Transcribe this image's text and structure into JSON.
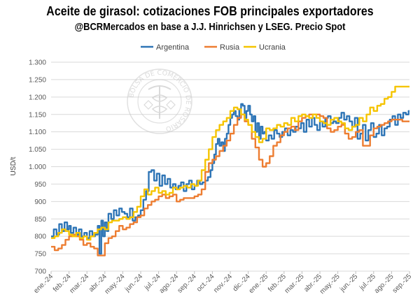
{
  "chart_data": {
    "type": "line",
    "title": "Aceite de girasol: cotizaciones FOB principales exportadores",
    "subtitle": "@BCRMercados en base a J.J. Hinrichsen y LSEG. Precio Spot",
    "ylabel": "USD/t",
    "xlabel": "",
    "ylim": [
      700,
      1300
    ],
    "yticks": [
      "700",
      "750",
      "800",
      "850",
      "900",
      "950",
      "1.000",
      "1.050",
      "1.100",
      "1.150",
      "1.200",
      "1.250",
      "1.300"
    ],
    "x_labels": [
      "ene.-24",
      "feb.-24",
      "mar.-24",
      "abr.-24",
      "may.-24",
      "jun.-24",
      "jul.-24",
      "ago.-24",
      "sep.-24",
      "oct.-24",
      "nov.-24",
      "dic.-24",
      "ene.-25",
      "feb.-25",
      "mar.-25",
      "abr.-25",
      "may.-25",
      "jun.-25",
      "jul.-25",
      "ago.-25",
      "sep.-25"
    ],
    "x_unit": "month",
    "grid": true,
    "legend_position": "top-center",
    "series": [
      {
        "name": "Argentina",
        "color": "#2E75B6",
        "x": [
          0,
          0.15,
          0.3,
          0.45,
          0.6,
          0.75,
          0.9,
          1.0,
          1.1,
          1.25,
          1.4,
          1.55,
          1.7,
          1.85,
          2.0,
          2.15,
          2.3,
          2.45,
          2.6,
          2.7,
          2.8,
          2.9,
          3.0,
          3.1,
          3.2,
          3.35,
          3.5,
          3.65,
          3.8,
          3.95,
          4.1,
          4.25,
          4.4,
          4.55,
          4.7,
          4.85,
          5.0,
          5.15,
          5.3,
          5.45,
          5.6,
          5.75,
          5.9,
          6.05,
          6.2,
          6.35,
          6.5,
          6.65,
          6.8,
          6.95,
          7.1,
          7.25,
          7.4,
          7.55,
          7.7,
          7.85,
          8.0,
          8.15,
          8.3,
          8.45,
          8.6,
          8.75,
          8.9,
          9.0,
          9.1,
          9.2,
          9.3,
          9.4,
          9.5,
          9.6,
          9.7,
          9.8,
          9.9,
          10.0,
          10.1,
          10.2,
          10.3,
          10.4,
          10.5,
          10.6,
          10.7,
          10.8,
          10.9,
          11.0,
          11.1,
          11.2,
          11.3,
          11.4,
          11.5,
          11.6,
          11.7,
          11.8,
          11.9,
          12.0,
          12.15,
          12.3,
          12.45,
          12.6,
          12.75,
          12.9,
          13.05,
          13.2,
          13.35,
          13.5,
          13.65,
          13.8,
          13.95,
          14.1,
          14.25,
          14.4,
          14.55,
          14.7,
          14.85,
          15.0,
          15.15,
          15.3,
          15.45,
          15.6,
          15.75,
          15.9,
          16.05,
          16.2,
          16.35,
          16.5,
          16.65,
          16.8,
          16.95,
          17.1,
          17.25,
          17.4,
          17.55,
          17.7,
          17.85,
          18.0,
          18.15,
          18.3,
          18.45,
          18.6,
          18.75,
          18.9,
          19.05,
          19.2,
          19.35,
          19.5,
          19.65,
          19.8,
          19.95,
          20.0
        ],
        "values": [
          800,
          820,
          805,
          835,
          815,
          840,
          820,
          830,
          810,
          825,
          805,
          820,
          800,
          810,
          795,
          815,
          800,
          805,
          830,
          750,
          845,
          800,
          840,
          815,
          865,
          850,
          875,
          860,
          880,
          870,
          865,
          855,
          880,
          845,
          855,
          860,
          875,
          905,
          930,
          985,
          990,
          960,
          980,
          945,
          975,
          950,
          965,
          940,
          950,
          935,
          945,
          955,
          930,
          950,
          960,
          935,
          945,
          960,
          950,
          955,
          960,
          970,
          990,
          1010,
          1035,
          1065,
          1080,
          1060,
          1070,
          1045,
          1080,
          1095,
          1120,
          1140,
          1150,
          1160,
          1145,
          1135,
          1165,
          1180,
          1175,
          1140,
          1160,
          1175,
          1150,
          1130,
          1145,
          1100,
          1125,
          1080,
          1115,
          1095,
          1100,
          1075,
          1090,
          1080,
          1105,
          1095,
          1085,
          1100,
          1110,
          1090,
          1105,
          1100,
          1115,
          1110,
          1125,
          1100,
          1135,
          1115,
          1140,
          1120,
          1105,
          1130,
          1115,
          1140,
          1145,
          1125,
          1130,
          1125,
          1140,
          1155,
          1135,
          1145,
          1130,
          1115,
          1140,
          1080,
          1095,
          1120,
          1075,
          1105,
          1125,
          1085,
          1095,
          1120,
          1090,
          1110,
          1115,
          1135,
          1145,
          1120,
          1150,
          1140,
          1155,
          1150,
          1160,
          1160
        ]
      },
      {
        "name": "Rusia",
        "color": "#ED7D31",
        "x": [
          0,
          0.2,
          0.4,
          0.6,
          0.8,
          1.0,
          1.2,
          1.4,
          1.6,
          1.8,
          2.0,
          2.2,
          2.4,
          2.6,
          2.8,
          3.0,
          3.2,
          3.4,
          3.6,
          3.8,
          4.0,
          4.2,
          4.4,
          4.6,
          4.8,
          5.0,
          5.2,
          5.4,
          5.6,
          5.8,
          6.0,
          6.2,
          6.4,
          6.6,
          6.8,
          7.0,
          7.2,
          7.4,
          7.6,
          7.8,
          8.0,
          8.2,
          8.4,
          8.6,
          8.8,
          9.0,
          9.2,
          9.4,
          9.6,
          9.8,
          10.0,
          10.2,
          10.4,
          10.6,
          10.8,
          11.0,
          11.2,
          11.4,
          11.6,
          11.8,
          12.0,
          12.2,
          12.4,
          12.6,
          12.8,
          13.0,
          13.2,
          13.4,
          13.6,
          13.8,
          14.0,
          14.2,
          14.4,
          14.6,
          14.8,
          15.0,
          15.2,
          15.4,
          15.6,
          15.8,
          16.0,
          16.2,
          16.4,
          16.6,
          16.8,
          17.0,
          17.2,
          17.4,
          17.6,
          17.8,
          18.0,
          18.2,
          18.4,
          18.6,
          18.8,
          19.0,
          19.2,
          19.4,
          19.6,
          19.8,
          20.0
        ],
        "values": [
          770,
          760,
          765,
          775,
          790,
          800,
          805,
          800,
          790,
          775,
          780,
          770,
          765,
          745,
          745,
          780,
          795,
          800,
          815,
          830,
          820,
          825,
          835,
          840,
          855,
          860,
          880,
          890,
          900,
          905,
          915,
          920,
          910,
          915,
          920,
          900,
          905,
          910,
          910,
          910,
          915,
          920,
          935,
          985,
          1010,
          1020,
          1030,
          1045,
          1060,
          1075,
          1095,
          1120,
          1140,
          1150,
          1130,
          1120,
          1080,
          1055,
          1020,
          1000,
          1010,
          1030,
          1060,
          1070,
          1090,
          1100,
          1110,
          1115,
          1105,
          1130,
          1140,
          1145,
          1150,
          1150,
          1150,
          1145,
          1140,
          1110,
          1100,
          1105,
          1115,
          1120,
          1095,
          1080,
          1085,
          1100,
          1105,
          1060,
          1060,
          1090,
          1110,
          1115,
          1120,
          1125,
          1130,
          1135,
          1135,
          1135,
          1130,
          1130,
          1130
        ]
      },
      {
        "name": "Ucrania",
        "color": "#F5C400",
        "x": [
          0,
          0.2,
          0.4,
          0.6,
          0.8,
          1.0,
          1.2,
          1.4,
          1.6,
          1.8,
          2.0,
          2.2,
          2.4,
          2.6,
          2.8,
          3.0,
          3.2,
          3.4,
          3.6,
          3.8,
          4.0,
          4.2,
          4.4,
          4.6,
          4.8,
          5.0,
          5.2,
          5.4,
          5.6,
          5.8,
          6.0,
          6.2,
          6.4,
          6.6,
          6.8,
          7.0,
          7.2,
          7.4,
          7.6,
          7.8,
          8.0,
          8.2,
          8.4,
          8.6,
          8.8,
          9.0,
          9.2,
          9.4,
          9.6,
          9.8,
          10.0,
          10.2,
          10.4,
          10.6,
          10.8,
          11.0,
          11.2,
          11.4,
          11.6,
          11.8,
          12.0,
          12.2,
          12.4,
          12.6,
          12.8,
          13.0,
          13.2,
          13.4,
          13.6,
          13.8,
          14.0,
          14.2,
          14.4,
          14.6,
          14.8,
          15.0,
          15.2,
          15.4,
          15.6,
          15.8,
          16.0,
          16.2,
          16.4,
          16.6,
          16.8,
          17.0,
          17.2,
          17.4,
          17.6,
          17.8,
          18.0,
          18.2,
          18.4,
          18.6,
          18.8,
          19.0,
          19.2,
          19.4,
          19.6,
          19.8,
          20.0
        ],
        "values": [
          795,
          800,
          810,
          820,
          815,
          805,
          800,
          810,
          795,
          800,
          790,
          800,
          810,
          820,
          825,
          820,
          840,
          845,
          845,
          850,
          855,
          850,
          855,
          870,
          885,
          915,
          935,
          920,
          930,
          940,
          925,
          930,
          920,
          925,
          940,
          935,
          940,
          945,
          940,
          950,
          945,
          960,
          990,
          1020,
          1050,
          1085,
          1105,
          1120,
          1130,
          1140,
          1160,
          1170,
          1165,
          1150,
          1135,
          1120,
          1100,
          1085,
          1070,
          1080,
          1110,
          1105,
          1110,
          1120,
          1115,
          1125,
          1120,
          1140,
          1130,
          1145,
          1150,
          1145,
          1140,
          1150,
          1140,
          1130,
          1125,
          1120,
          1135,
          1140,
          1130,
          1125,
          1110,
          1105,
          1115,
          1120,
          1140,
          1130,
          1150,
          1170,
          1160,
          1175,
          1180,
          1195,
          1200,
          1215,
          1230,
          1230,
          1230,
          1230,
          1230
        ]
      }
    ]
  },
  "watermark": {
    "text": "BOLSA DE COMERCIO DE ROSARIO"
  }
}
